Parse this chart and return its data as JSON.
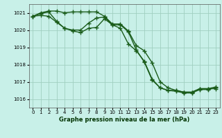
{
  "xlabel": "Graphe pression niveau de la mer (hPa)",
  "ylim": [
    1015.5,
    1021.5
  ],
  "xlim": [
    -0.5,
    23.5
  ],
  "yticks": [
    1016,
    1017,
    1018,
    1019,
    1020,
    1021
  ],
  "xticks": [
    0,
    1,
    2,
    3,
    4,
    5,
    6,
    7,
    8,
    9,
    10,
    11,
    12,
    13,
    14,
    15,
    16,
    17,
    18,
    19,
    20,
    21,
    22,
    23
  ],
  "bg_color": "#c8f0e8",
  "grid_color": "#a0cfc0",
  "line_color": "#1a5c1a",
  "series": [
    {
      "x": [
        0,
        1,
        2,
        3,
        4,
        5,
        6,
        7,
        8,
        9,
        10,
        11,
        12,
        13,
        14,
        15,
        16,
        17,
        18,
        19,
        20,
        21,
        22,
        23
      ],
      "y": [
        1020.8,
        1021.0,
        1021.1,
        1021.1,
        1021.0,
        1021.05,
        1021.05,
        1021.05,
        1021.05,
        1020.8,
        1020.35,
        1020.35,
        1019.95,
        1019.1,
        1018.8,
        1018.1,
        1017.0,
        1016.65,
        1016.5,
        1016.4,
        1016.4,
        1016.6,
        1016.6,
        1016.6
      ]
    },
    {
      "x": [
        0,
        1,
        2,
        3,
        4,
        5,
        6,
        7,
        8,
        9,
        10,
        11,
        12,
        13,
        14,
        15,
        16,
        17,
        18,
        19,
        20,
        21,
        22,
        23
      ],
      "y": [
        1020.8,
        1020.95,
        1021.05,
        1020.5,
        1020.1,
        1020.0,
        1020.0,
        1020.4,
        1020.7,
        1020.75,
        1020.3,
        1020.3,
        1019.9,
        1018.85,
        1018.15,
        1017.1,
        1016.65,
        1016.5,
        1016.5,
        1016.4,
        1016.4,
        1016.6,
        1016.6,
        1016.7
      ]
    },
    {
      "x": [
        0,
        1,
        2,
        3,
        4,
        5,
        6,
        7,
        8,
        9,
        10,
        11,
        12,
        13,
        14,
        15,
        16,
        17,
        18,
        19,
        20,
        21,
        22,
        23
      ],
      "y": [
        1020.8,
        1020.85,
        1020.8,
        1020.45,
        1020.1,
        1019.95,
        1019.85,
        1020.1,
        1020.15,
        1020.65,
        1020.3,
        1020.1,
        1019.2,
        1018.8,
        1018.2,
        1017.15,
        1016.65,
        1016.5,
        1016.45,
        1016.35,
        1016.35,
        1016.55,
        1016.55,
        1016.65
      ]
    }
  ],
  "marker": "+",
  "markersize": 4,
  "markeredgewidth": 1.0,
  "linewidth": 1.0,
  "tick_fontsize": 5,
  "xlabel_fontsize": 6,
  "xlabel_color": "#003300"
}
